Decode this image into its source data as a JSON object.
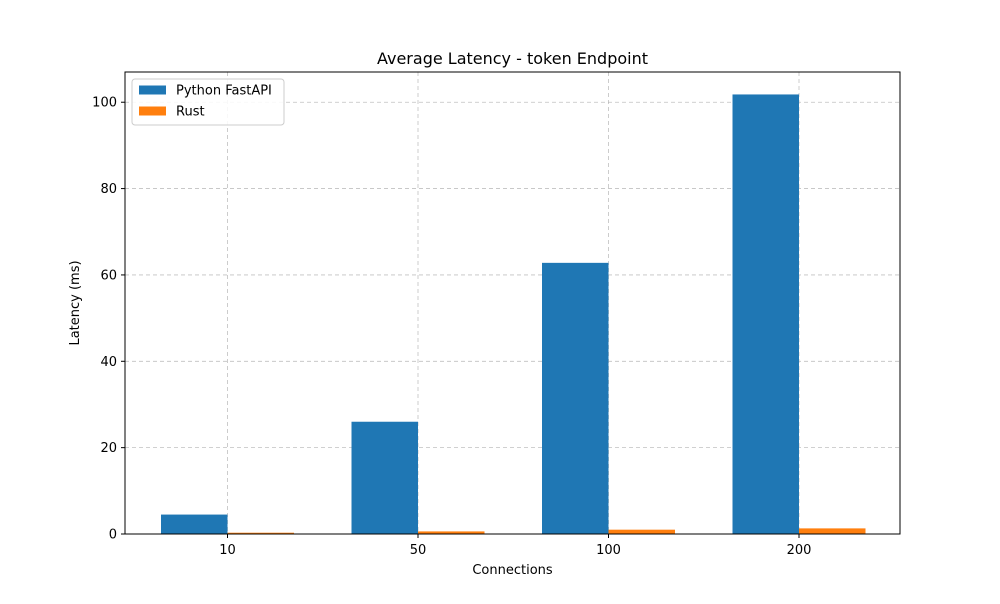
{
  "chart_data": {
    "type": "bar",
    "title": "Average Latency - token Endpoint",
    "xlabel": "Connections",
    "ylabel": "Latency (ms)",
    "categories": [
      "10",
      "50",
      "100",
      "200"
    ],
    "series": [
      {
        "name": "Python FastAPI",
        "color": "#1f77b4",
        "values": [
          4.5,
          26.0,
          62.8,
          101.8
        ]
      },
      {
        "name": "Rust",
        "color": "#ff7f0e",
        "values": [
          0.3,
          0.6,
          1.0,
          1.3
        ]
      }
    ],
    "ylim": [
      0,
      107
    ],
    "yticks": [
      0,
      20,
      40,
      60,
      80,
      100
    ],
    "grid": true,
    "legend_position": "upper-left"
  }
}
